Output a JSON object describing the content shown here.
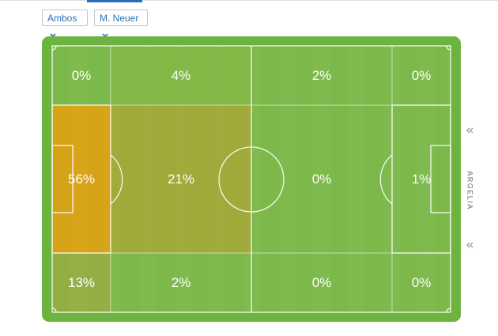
{
  "filters": [
    "Ambos",
    "M. Neuer"
  ],
  "side_label": "ARGELIA",
  "zones": [
    [
      "0%",
      "4%",
      "2%",
      "0%"
    ],
    [
      "56%",
      "21%",
      "0%",
      "1%"
    ],
    [
      "13%",
      "2%",
      "0%",
      "0%"
    ]
  ],
  "zone_colors": [
    [
      "#7fba4c",
      "#86b948",
      "#7fba4c",
      "#7fba4c"
    ],
    [
      "#e8a010",
      "#a8a838",
      "#7fba4c",
      "#7fba4c"
    ],
    [
      "#9aae44",
      "#7fba4c",
      "#7fba4c",
      "#7fba4c"
    ]
  ]
}
